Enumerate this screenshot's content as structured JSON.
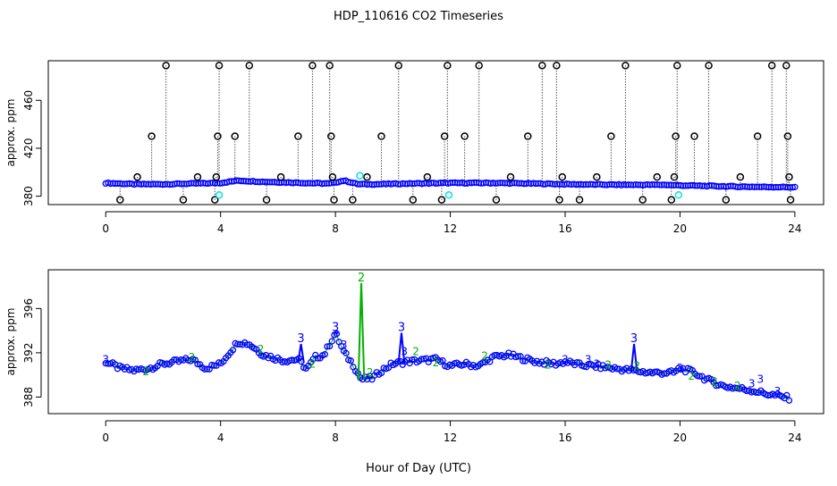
{
  "title": "HDP_110616  CO2 Timeseries",
  "xlabel": "Hour of Day (UTC)",
  "colors": {
    "primary": "#0000ff",
    "secondary": "#00b000",
    "outlier": "#000000",
    "flag": "#00e5e5"
  },
  "chart_data": [
    {
      "type": "scatter",
      "ylabel": "approx. ppm",
      "xlim": [
        -2,
        25
      ],
      "ylim": [
        373,
        493
      ],
      "xticks": [
        0,
        4,
        8,
        12,
        16,
        20,
        24
      ],
      "yticks": [
        380,
        420,
        460
      ],
      "tick_labels": [
        "0",
        "4",
        "8",
        "12",
        "16",
        "20",
        "24"
      ],
      "ytick_labels": [
        "380",
        "420",
        "460"
      ],
      "baseline": {
        "name": "",
        "anchors": [
          [
            0.0,
            391
          ],
          [
            1.0,
            390
          ],
          [
            2.0,
            390
          ],
          [
            3.0,
            390.5
          ],
          [
            4.0,
            391
          ],
          [
            4.6,
            393
          ],
          [
            5.5,
            392
          ],
          [
            7.0,
            391
          ],
          [
            7.8,
            390.5
          ],
          [
            8.3,
            393
          ],
          [
            8.8,
            390
          ],
          [
            9.5,
            390
          ],
          [
            10.5,
            390.5
          ],
          [
            12.0,
            391
          ],
          [
            13.5,
            391
          ],
          [
            15.0,
            390.5
          ],
          [
            16.0,
            390
          ],
          [
            18.0,
            389.5
          ],
          [
            19.5,
            389.5
          ],
          [
            20.0,
            389
          ],
          [
            22.0,
            388
          ],
          [
            23.8,
            387.5
          ]
        ]
      },
      "outliers": [
        {
          "x": 0.5,
          "y": 377
        },
        {
          "x": 1.1,
          "y": 396
        },
        {
          "x": 1.6,
          "y": 430
        },
        {
          "x": 2.1,
          "y": 489
        },
        {
          "x": 2.7,
          "y": 377
        },
        {
          "x": 3.2,
          "y": 396
        },
        {
          "x": 3.8,
          "y": 377
        },
        {
          "x": 3.85,
          "y": 396
        },
        {
          "x": 3.9,
          "y": 430
        },
        {
          "x": 3.95,
          "y": 489
        },
        {
          "x": 4.5,
          "y": 430
        },
        {
          "x": 5.0,
          "y": 489
        },
        {
          "x": 5.6,
          "y": 377
        },
        {
          "x": 6.1,
          "y": 396
        },
        {
          "x": 6.7,
          "y": 430
        },
        {
          "x": 7.2,
          "y": 489
        },
        {
          "x": 7.8,
          "y": 489
        },
        {
          "x": 7.85,
          "y": 430
        },
        {
          "x": 7.9,
          "y": 396
        },
        {
          "x": 7.95,
          "y": 377
        },
        {
          "x": 8.6,
          "y": 377
        },
        {
          "x": 9.1,
          "y": 396
        },
        {
          "x": 9.6,
          "y": 430
        },
        {
          "x": 10.2,
          "y": 489
        },
        {
          "x": 10.7,
          "y": 377
        },
        {
          "x": 11.2,
          "y": 396
        },
        {
          "x": 11.7,
          "y": 377
        },
        {
          "x": 11.8,
          "y": 430
        },
        {
          "x": 11.9,
          "y": 489
        },
        {
          "x": 12.5,
          "y": 430
        },
        {
          "x": 13.0,
          "y": 489
        },
        {
          "x": 13.6,
          "y": 377
        },
        {
          "x": 14.1,
          "y": 396
        },
        {
          "x": 14.7,
          "y": 430
        },
        {
          "x": 15.2,
          "y": 489
        },
        {
          "x": 15.7,
          "y": 489
        },
        {
          "x": 15.8,
          "y": 377
        },
        {
          "x": 15.9,
          "y": 396
        },
        {
          "x": 16.5,
          "y": 377
        },
        {
          "x": 17.1,
          "y": 396
        },
        {
          "x": 17.6,
          "y": 430
        },
        {
          "x": 18.1,
          "y": 489
        },
        {
          "x": 18.7,
          "y": 377
        },
        {
          "x": 19.2,
          "y": 396
        },
        {
          "x": 19.7,
          "y": 377
        },
        {
          "x": 19.8,
          "y": 396
        },
        {
          "x": 19.85,
          "y": 430
        },
        {
          "x": 19.9,
          "y": 489
        },
        {
          "x": 20.5,
          "y": 430
        },
        {
          "x": 21.0,
          "y": 489
        },
        {
          "x": 21.6,
          "y": 377
        },
        {
          "x": 22.1,
          "y": 396
        },
        {
          "x": 22.7,
          "y": 430
        },
        {
          "x": 23.2,
          "y": 489
        },
        {
          "x": 23.7,
          "y": 489
        },
        {
          "x": 23.75,
          "y": 430
        },
        {
          "x": 23.8,
          "y": 396
        },
        {
          "x": 23.85,
          "y": 377
        }
      ],
      "flagged": [
        {
          "x": 3.95,
          "y": 381
        },
        {
          "x": 11.95,
          "y": 381
        },
        {
          "x": 19.95,
          "y": 381
        },
        {
          "x": 8.85,
          "y": 397
        }
      ]
    },
    {
      "type": "scatter",
      "ylabel": "approx. ppm",
      "xlim": [
        -2,
        25
      ],
      "ylim": [
        386.5,
        399.5
      ],
      "xticks": [
        0,
        4,
        8,
        12,
        16,
        20,
        24
      ],
      "yticks": [
        388,
        392,
        396
      ],
      "tick_labels": [
        "0",
        "4",
        "8",
        "12",
        "16",
        "20",
        "24"
      ],
      "ytick_labels": [
        "388",
        "392",
        "396"
      ],
      "anchors": [
        [
          0.0,
          391.2
        ],
        [
          0.5,
          390.6
        ],
        [
          1.0,
          390.4
        ],
        [
          1.5,
          390.6
        ],
        [
          2.0,
          391.0
        ],
        [
          3.0,
          391.4
        ],
        [
          3.5,
          390.6
        ],
        [
          4.0,
          391.0
        ],
        [
          4.3,
          392.0
        ],
        [
          4.6,
          393.0
        ],
        [
          5.0,
          392.8
        ],
        [
          5.5,
          391.8
        ],
        [
          6.2,
          391.3
        ],
        [
          6.7,
          391.4
        ],
        [
          7.0,
          390.5
        ],
        [
          7.3,
          391.6
        ],
        [
          7.6,
          391.8
        ],
        [
          8.0,
          393.8
        ],
        [
          8.3,
          392.0
        ],
        [
          8.6,
          391.0
        ],
        [
          8.9,
          389.6
        ],
        [
          9.3,
          389.7
        ],
        [
          9.6,
          390.4
        ],
        [
          10.0,
          391.0
        ],
        [
          10.5,
          391.2
        ],
        [
          11.0,
          391.3
        ],
        [
          11.5,
          391.4
        ],
        [
          12.0,
          390.8
        ],
        [
          12.5,
          391.0
        ],
        [
          13.0,
          390.8
        ],
        [
          13.5,
          391.6
        ],
        [
          14.0,
          391.8
        ],
        [
          14.5,
          391.5
        ],
        [
          15.0,
          391.2
        ],
        [
          15.7,
          391.0
        ],
        [
          16.0,
          391.2
        ],
        [
          16.5,
          390.9
        ],
        [
          17.0,
          390.8
        ],
        [
          18.0,
          390.5
        ],
        [
          19.0,
          390.2
        ],
        [
          19.8,
          390.2
        ],
        [
          20.0,
          390.6
        ],
        [
          20.5,
          390.2
        ],
        [
          21.0,
          389.5
        ],
        [
          21.5,
          389.0
        ],
        [
          22.0,
          388.8
        ],
        [
          22.5,
          388.6
        ],
        [
          23.0,
          388.3
        ],
        [
          23.8,
          387.9
        ]
      ],
      "spikes": [
        {
          "x": 6.8,
          "y": 392.8,
          "label": "3",
          "series": "primary"
        },
        {
          "x": 8.0,
          "y": 393.8,
          "label": "3",
          "series": "primary"
        },
        {
          "x": 8.9,
          "y": 398.3,
          "label": "2",
          "series": "secondary"
        },
        {
          "x": 10.3,
          "y": 393.8,
          "label": "3",
          "series": "primary"
        },
        {
          "x": 18.4,
          "y": 392.8,
          "label": "3",
          "series": "primary"
        }
      ],
      "digit_markers": [
        {
          "x": 0.0,
          "y": 391.4,
          "label": "3",
          "series": "primary"
        },
        {
          "x": 1.4,
          "y": 390.3,
          "label": "2",
          "series": "secondary"
        },
        {
          "x": 3.0,
          "y": 391.6,
          "label": "2",
          "series": "secondary"
        },
        {
          "x": 5.4,
          "y": 392.3,
          "label": "2",
          "series": "secondary"
        },
        {
          "x": 7.2,
          "y": 391.0,
          "label": "2",
          "series": "secondary"
        },
        {
          "x": 8.3,
          "y": 392.7,
          "label": "3",
          "series": "primary"
        },
        {
          "x": 9.2,
          "y": 390.2,
          "label": "2",
          "series": "secondary"
        },
        {
          "x": 10.4,
          "y": 392.1,
          "label": "3",
          "series": "primary"
        },
        {
          "x": 10.8,
          "y": 392.1,
          "label": "2",
          "series": "secondary"
        },
        {
          "x": 11.5,
          "y": 391.1,
          "label": "2",
          "series": "secondary"
        },
        {
          "x": 13.2,
          "y": 391.7,
          "label": "2",
          "series": "secondary"
        },
        {
          "x": 15.4,
          "y": 390.9,
          "label": "2",
          "series": "secondary"
        },
        {
          "x": 16.0,
          "y": 391.4,
          "label": "3",
          "series": "primary"
        },
        {
          "x": 16.8,
          "y": 391.4,
          "label": "3",
          "series": "primary"
        },
        {
          "x": 17.1,
          "y": 391.0,
          "label": "3",
          "series": "primary"
        },
        {
          "x": 17.5,
          "y": 390.9,
          "label": "2",
          "series": "secondary"
        },
        {
          "x": 18.5,
          "y": 390.8,
          "label": "2",
          "series": "secondary"
        },
        {
          "x": 20.0,
          "y": 390.6,
          "label": "3",
          "series": "primary"
        },
        {
          "x": 20.4,
          "y": 389.9,
          "label": "2",
          "series": "secondary"
        },
        {
          "x": 21.2,
          "y": 389.4,
          "label": "2",
          "series": "secondary"
        },
        {
          "x": 22.0,
          "y": 389.0,
          "label": "2",
          "series": "secondary"
        },
        {
          "x": 22.5,
          "y": 389.2,
          "label": "3",
          "series": "primary"
        },
        {
          "x": 22.8,
          "y": 389.6,
          "label": "3",
          "series": "primary"
        },
        {
          "x": 23.4,
          "y": 388.5,
          "label": "3",
          "series": "primary"
        }
      ]
    }
  ]
}
